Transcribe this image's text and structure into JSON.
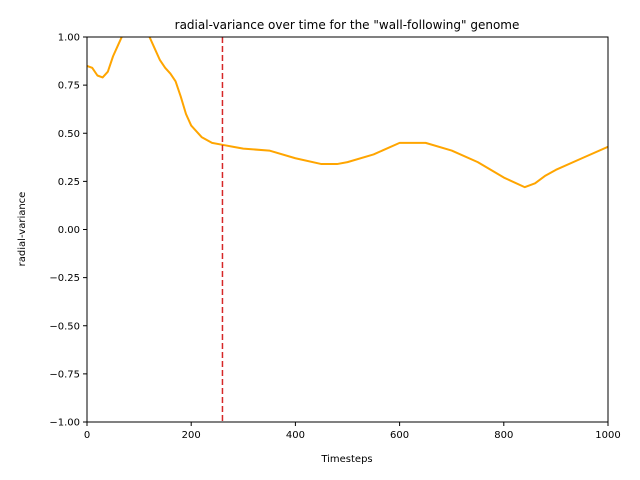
{
  "chart_data": {
    "type": "line",
    "title": "radial-variance over time for the \"wall-following\" genome",
    "xlabel": "Timesteps",
    "ylabel": "radial-variance",
    "xlim": [
      0,
      1000
    ],
    "ylim": [
      -1.0,
      1.0
    ],
    "x_ticks": [
      0,
      200,
      400,
      600,
      800,
      1000
    ],
    "x_tick_labels": [
      "0",
      "200",
      "400",
      "600",
      "800",
      "1000"
    ],
    "y_ticks": [
      -1.0,
      -0.75,
      -0.5,
      -0.25,
      0.0,
      0.25,
      0.5,
      0.75,
      1.0
    ],
    "y_tick_labels": [
      "−1.00",
      "−0.75",
      "−0.50",
      "−0.25",
      "0.00",
      "0.25",
      "0.50",
      "0.75",
      "1.00"
    ],
    "grid": false,
    "series": [
      {
        "color": "#ffa500",
        "x": [
          0,
          10,
          20,
          30,
          40,
          50,
          60,
          70,
          80,
          90,
          100,
          110,
          120,
          130,
          140,
          150,
          160,
          170,
          180,
          190,
          200,
          220,
          240,
          260,
          280,
          300,
          350,
          400,
          450,
          480,
          500,
          550,
          600,
          650,
          700,
          750,
          800,
          840,
          860,
          880,
          900,
          950,
          1000
        ],
        "y": [
          0.85,
          0.84,
          0.8,
          0.79,
          0.82,
          0.9,
          0.96,
          1.02,
          1.06,
          1.08,
          1.07,
          1.04,
          1.0,
          0.94,
          0.88,
          0.84,
          0.81,
          0.77,
          0.69,
          0.6,
          0.54,
          0.48,
          0.45,
          0.44,
          0.43,
          0.42,
          0.41,
          0.37,
          0.34,
          0.34,
          0.35,
          0.39,
          0.45,
          0.45,
          0.41,
          0.35,
          0.27,
          0.22,
          0.24,
          0.28,
          0.31,
          0.37,
          0.43
        ]
      }
    ],
    "vlines": [
      {
        "x": 260,
        "color": "#d62728",
        "style": "dashed"
      }
    ]
  }
}
